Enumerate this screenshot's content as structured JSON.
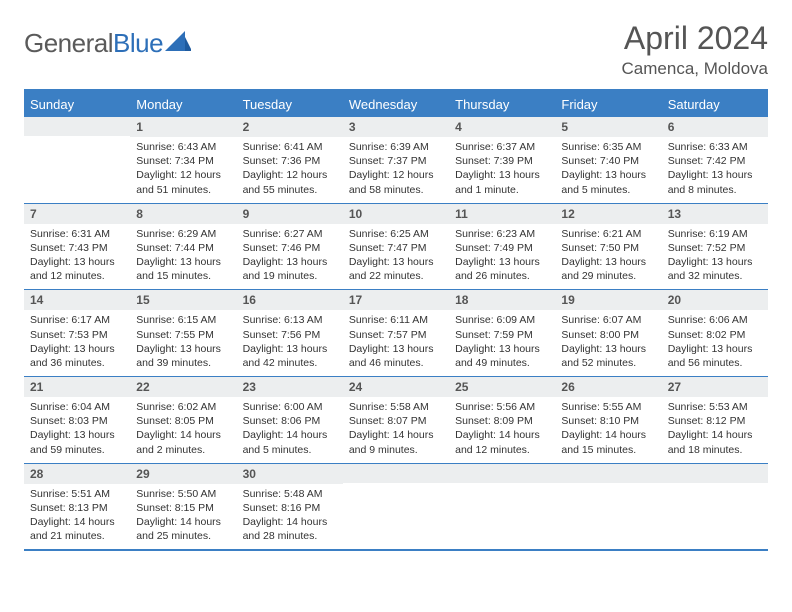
{
  "brand": {
    "part1": "General",
    "part2": "Blue"
  },
  "title": "April 2024",
  "location": "Camenca, Moldova",
  "day_headers": [
    "Sunday",
    "Monday",
    "Tuesday",
    "Wednesday",
    "Thursday",
    "Friday",
    "Saturday"
  ],
  "colors": {
    "header_blue": "#3b7fc4",
    "row_gray": "#eceeef",
    "text": "#555555"
  },
  "weeks": [
    [
      {
        "n": "",
        "sr": "",
        "ss": "",
        "dl": ""
      },
      {
        "n": "1",
        "sr": "Sunrise: 6:43 AM",
        "ss": "Sunset: 7:34 PM",
        "dl": "Daylight: 12 hours and 51 minutes."
      },
      {
        "n": "2",
        "sr": "Sunrise: 6:41 AM",
        "ss": "Sunset: 7:36 PM",
        "dl": "Daylight: 12 hours and 55 minutes."
      },
      {
        "n": "3",
        "sr": "Sunrise: 6:39 AM",
        "ss": "Sunset: 7:37 PM",
        "dl": "Daylight: 12 hours and 58 minutes."
      },
      {
        "n": "4",
        "sr": "Sunrise: 6:37 AM",
        "ss": "Sunset: 7:39 PM",
        "dl": "Daylight: 13 hours and 1 minute."
      },
      {
        "n": "5",
        "sr": "Sunrise: 6:35 AM",
        "ss": "Sunset: 7:40 PM",
        "dl": "Daylight: 13 hours and 5 minutes."
      },
      {
        "n": "6",
        "sr": "Sunrise: 6:33 AM",
        "ss": "Sunset: 7:42 PM",
        "dl": "Daylight: 13 hours and 8 minutes."
      }
    ],
    [
      {
        "n": "7",
        "sr": "Sunrise: 6:31 AM",
        "ss": "Sunset: 7:43 PM",
        "dl": "Daylight: 13 hours and 12 minutes."
      },
      {
        "n": "8",
        "sr": "Sunrise: 6:29 AM",
        "ss": "Sunset: 7:44 PM",
        "dl": "Daylight: 13 hours and 15 minutes."
      },
      {
        "n": "9",
        "sr": "Sunrise: 6:27 AM",
        "ss": "Sunset: 7:46 PM",
        "dl": "Daylight: 13 hours and 19 minutes."
      },
      {
        "n": "10",
        "sr": "Sunrise: 6:25 AM",
        "ss": "Sunset: 7:47 PM",
        "dl": "Daylight: 13 hours and 22 minutes."
      },
      {
        "n": "11",
        "sr": "Sunrise: 6:23 AM",
        "ss": "Sunset: 7:49 PM",
        "dl": "Daylight: 13 hours and 26 minutes."
      },
      {
        "n": "12",
        "sr": "Sunrise: 6:21 AM",
        "ss": "Sunset: 7:50 PM",
        "dl": "Daylight: 13 hours and 29 minutes."
      },
      {
        "n": "13",
        "sr": "Sunrise: 6:19 AM",
        "ss": "Sunset: 7:52 PM",
        "dl": "Daylight: 13 hours and 32 minutes."
      }
    ],
    [
      {
        "n": "14",
        "sr": "Sunrise: 6:17 AM",
        "ss": "Sunset: 7:53 PM",
        "dl": "Daylight: 13 hours and 36 minutes."
      },
      {
        "n": "15",
        "sr": "Sunrise: 6:15 AM",
        "ss": "Sunset: 7:55 PM",
        "dl": "Daylight: 13 hours and 39 minutes."
      },
      {
        "n": "16",
        "sr": "Sunrise: 6:13 AM",
        "ss": "Sunset: 7:56 PM",
        "dl": "Daylight: 13 hours and 42 minutes."
      },
      {
        "n": "17",
        "sr": "Sunrise: 6:11 AM",
        "ss": "Sunset: 7:57 PM",
        "dl": "Daylight: 13 hours and 46 minutes."
      },
      {
        "n": "18",
        "sr": "Sunrise: 6:09 AM",
        "ss": "Sunset: 7:59 PM",
        "dl": "Daylight: 13 hours and 49 minutes."
      },
      {
        "n": "19",
        "sr": "Sunrise: 6:07 AM",
        "ss": "Sunset: 8:00 PM",
        "dl": "Daylight: 13 hours and 52 minutes."
      },
      {
        "n": "20",
        "sr": "Sunrise: 6:06 AM",
        "ss": "Sunset: 8:02 PM",
        "dl": "Daylight: 13 hours and 56 minutes."
      }
    ],
    [
      {
        "n": "21",
        "sr": "Sunrise: 6:04 AM",
        "ss": "Sunset: 8:03 PM",
        "dl": "Daylight: 13 hours and 59 minutes."
      },
      {
        "n": "22",
        "sr": "Sunrise: 6:02 AM",
        "ss": "Sunset: 8:05 PM",
        "dl": "Daylight: 14 hours and 2 minutes."
      },
      {
        "n": "23",
        "sr": "Sunrise: 6:00 AM",
        "ss": "Sunset: 8:06 PM",
        "dl": "Daylight: 14 hours and 5 minutes."
      },
      {
        "n": "24",
        "sr": "Sunrise: 5:58 AM",
        "ss": "Sunset: 8:07 PM",
        "dl": "Daylight: 14 hours and 9 minutes."
      },
      {
        "n": "25",
        "sr": "Sunrise: 5:56 AM",
        "ss": "Sunset: 8:09 PM",
        "dl": "Daylight: 14 hours and 12 minutes."
      },
      {
        "n": "26",
        "sr": "Sunrise: 5:55 AM",
        "ss": "Sunset: 8:10 PM",
        "dl": "Daylight: 14 hours and 15 minutes."
      },
      {
        "n": "27",
        "sr": "Sunrise: 5:53 AM",
        "ss": "Sunset: 8:12 PM",
        "dl": "Daylight: 14 hours and 18 minutes."
      }
    ],
    [
      {
        "n": "28",
        "sr": "Sunrise: 5:51 AM",
        "ss": "Sunset: 8:13 PM",
        "dl": "Daylight: 14 hours and 21 minutes."
      },
      {
        "n": "29",
        "sr": "Sunrise: 5:50 AM",
        "ss": "Sunset: 8:15 PM",
        "dl": "Daylight: 14 hours and 25 minutes."
      },
      {
        "n": "30",
        "sr": "Sunrise: 5:48 AM",
        "ss": "Sunset: 8:16 PM",
        "dl": "Daylight: 14 hours and 28 minutes."
      },
      {
        "n": "",
        "sr": "",
        "ss": "",
        "dl": ""
      },
      {
        "n": "",
        "sr": "",
        "ss": "",
        "dl": ""
      },
      {
        "n": "",
        "sr": "",
        "ss": "",
        "dl": ""
      },
      {
        "n": "",
        "sr": "",
        "ss": "",
        "dl": ""
      }
    ]
  ]
}
